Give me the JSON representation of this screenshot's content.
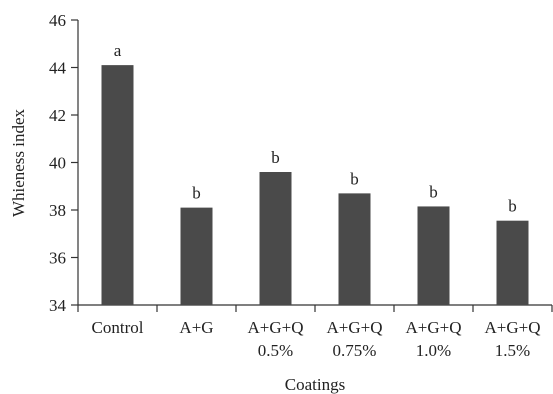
{
  "chart_data": {
    "type": "bar",
    "categories": [
      [
        "Control"
      ],
      [
        "A+G"
      ],
      [
        "A+G+Q",
        "0.5%"
      ],
      [
        "A+G+Q",
        "0.75%"
      ],
      [
        "A+G+Q",
        "1.0%"
      ],
      [
        "A+G+Q",
        "1.5%"
      ]
    ],
    "values": [
      44.1,
      38.1,
      39.6,
      38.7,
      38.15,
      37.55
    ],
    "significance_letters": [
      "a",
      "b",
      "b",
      "b",
      "b",
      "b"
    ],
    "xlabel": "Coatings",
    "ylabel": "Whieness index",
    "ylim": [
      34,
      46
    ],
    "yticks": [
      34,
      36,
      38,
      40,
      42,
      44,
      46
    ],
    "bar_color": "#4a4a4a",
    "grid": false
  }
}
